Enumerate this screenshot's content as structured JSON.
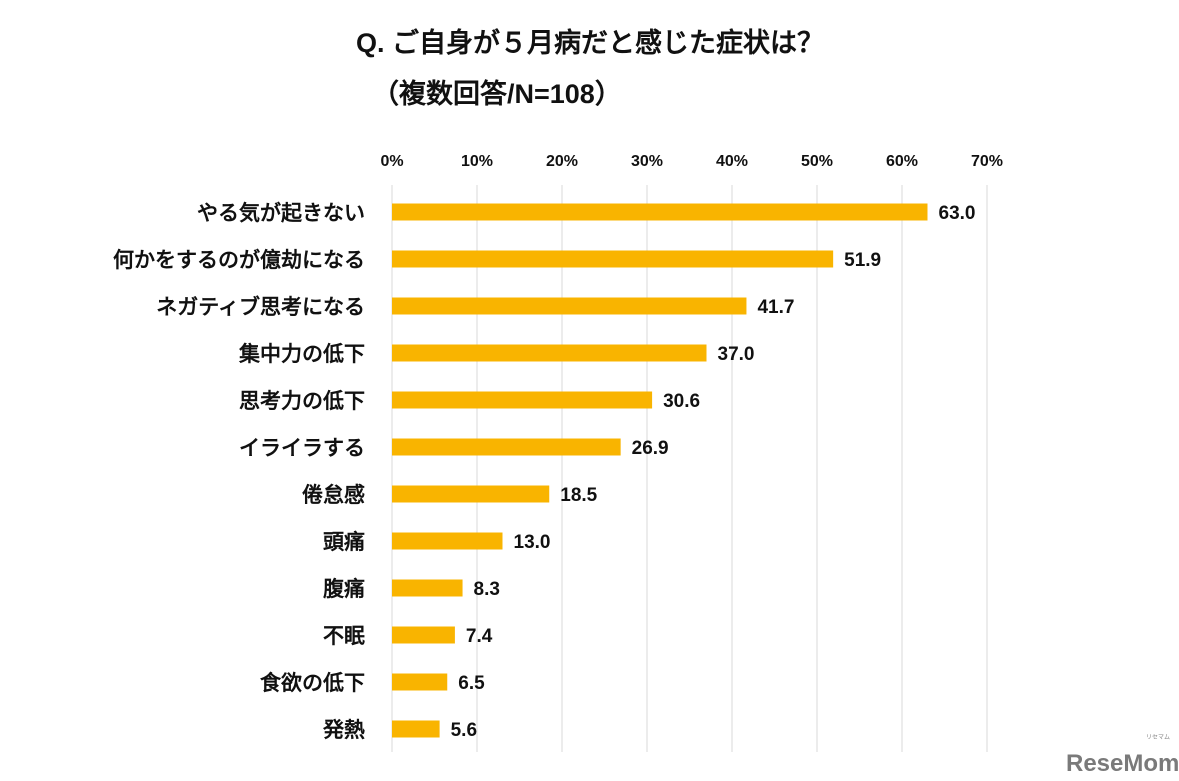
{
  "chart_data": {
    "type": "bar",
    "orientation": "horizontal",
    "title": "Q. ご自身が５月病だと感じた症状は？",
    "subtitle": "（複数回答/N=108）",
    "categories": [
      "やる気が起きない",
      "何かをするのが億劫になる",
      "ネガティブ思考になる",
      "集中力の低下",
      "思考力の低下",
      "イライラする",
      "倦怠感",
      "頭痛",
      "腹痛",
      "不眠",
      "食欲の低下",
      "発熱"
    ],
    "values": [
      63.0,
      51.9,
      41.7,
      37.0,
      30.6,
      26.9,
      18.5,
      13.0,
      8.3,
      7.4,
      6.5,
      5.6
    ],
    "value_labels": [
      "63.0",
      "51.9",
      "41.7",
      "37.0",
      "30.6",
      "26.9",
      "18.5",
      "13.0",
      "8.3",
      "7.4",
      "6.5",
      "5.6"
    ],
    "xlim": [
      0,
      70
    ],
    "x_ticks": [
      "0%",
      "10%",
      "20%",
      "30%",
      "40%",
      "50%",
      "60%",
      "70%"
    ],
    "x_axis_position": "top",
    "grid": true,
    "bar_color": "#F9B400",
    "grid_color": "#d9d9d9"
  },
  "watermark": {
    "text": "ReseMom",
    "subtext": "リセマム"
  }
}
